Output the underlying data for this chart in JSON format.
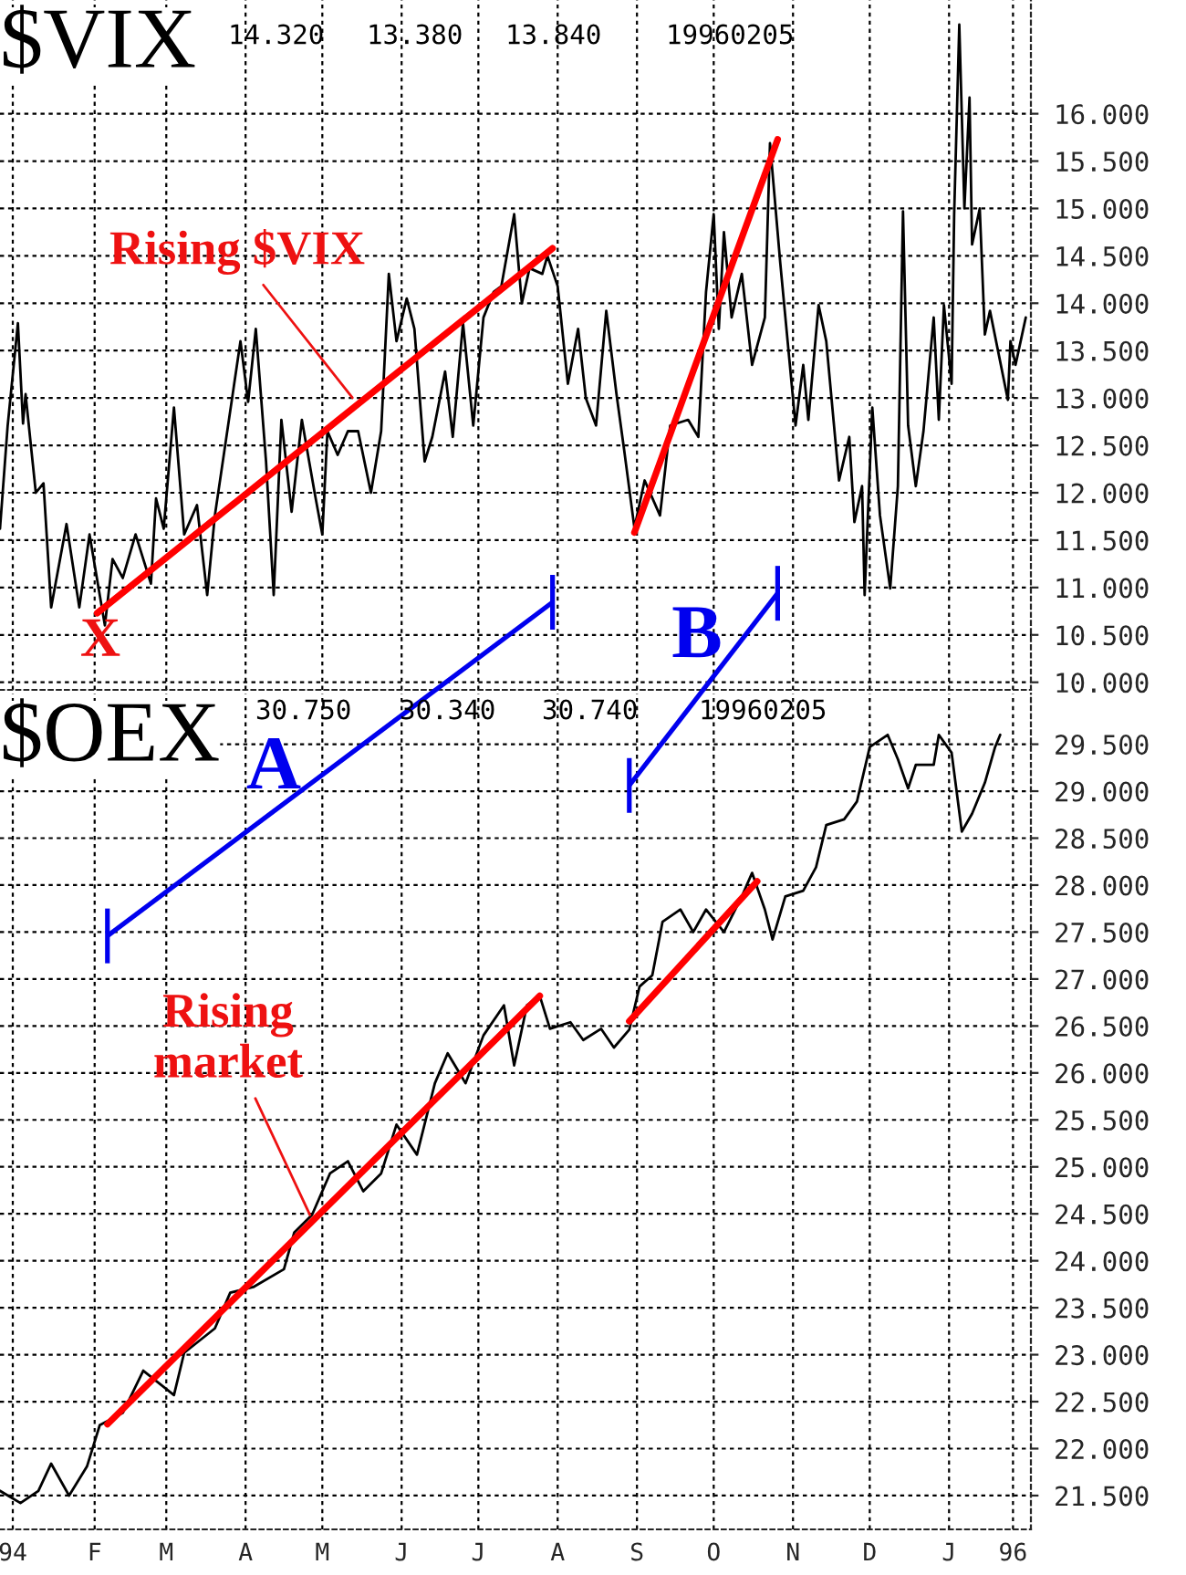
{
  "chart_data": [
    {
      "type": "line",
      "title": "$VIX",
      "grid": true,
      "line_style": "solid",
      "tick_labels": "y",
      "xlim": [
        "1994-12-26",
        "1996-02-02"
      ],
      "xticks": [
        {
          "value": "1994-12-31",
          "label": null
        },
        {
          "value": "1995-02-01",
          "label": null
        },
        {
          "value": "1995-03-01",
          "label": null
        },
        {
          "value": "1995-04-01",
          "label": null
        },
        {
          "value": "1995-05-01",
          "label": null
        },
        {
          "value": "1995-06-01",
          "label": null
        },
        {
          "value": "1995-07-01",
          "label": null
        },
        {
          "value": "1995-08-01",
          "label": null
        },
        {
          "value": "1995-09-01",
          "label": null
        },
        {
          "value": "1995-10-01",
          "label": null
        },
        {
          "value": "1995-11-01",
          "label": null
        },
        {
          "value": "1995-12-01",
          "label": null
        },
        {
          "value": "1996-01-01",
          "label": null
        },
        {
          "value": "1996-01-26",
          "label": null
        }
      ],
      "ylim": [
        9.92,
        17.2
      ],
      "yticks": [
        {
          "value": 10,
          "label": "10.000"
        },
        {
          "value": 10.5,
          "label": "10.500"
        },
        {
          "value": 11,
          "label": "11.000"
        },
        {
          "value": 11.5,
          "label": "11.500"
        },
        {
          "value": 12,
          "label": "12.000"
        },
        {
          "value": 12.5,
          "label": "12.500"
        },
        {
          "value": 13,
          "label": "13.000"
        },
        {
          "value": 13.5,
          "label": "13.500"
        },
        {
          "value": 14,
          "label": "14.000"
        },
        {
          "value": 14.5,
          "label": "14.500"
        },
        {
          "value": 15,
          "label": "15.000"
        },
        {
          "value": 15.5,
          "label": "15.500"
        },
        {
          "value": 16,
          "label": "16.000"
        }
      ],
      "series": [
        {
          "color": "#000000",
          "x": [
            "1994-12-26",
            "1994-12-29",
            "1995-01-02",
            "1995-01-04",
            "1995-01-05",
            "1995-01-09",
            "1995-01-12",
            "1995-01-15",
            "1995-01-21",
            "1995-01-26",
            "1995-01-30",
            "1995-02-05",
            "1995-02-08",
            "1995-02-12",
            "1995-02-17",
            "1995-02-23",
            "1995-02-25",
            "1995-02-28",
            "1995-03-04",
            "1995-03-08",
            "1995-03-13",
            "1995-03-17",
            "1995-03-20",
            "1995-03-30",
            "1995-04-02",
            "1995-04-05",
            "1995-04-09",
            "1995-04-12",
            "1995-04-15",
            "1995-04-19",
            "1995-04-23",
            "1995-04-28",
            "1995-05-01",
            "1995-05-03",
            "1995-05-07",
            "1995-05-11",
            "1995-05-15",
            "1995-05-20",
            "1995-05-24",
            "1995-05-27",
            "1995-05-30",
            "1995-06-03",
            "1995-06-06",
            "1995-06-10",
            "1995-06-13",
            "1995-06-18",
            "1995-06-21",
            "1995-06-25",
            "1995-06-29",
            "1995-07-03",
            "1995-07-07",
            "1995-07-10",
            "1995-07-15",
            "1995-07-18",
            "1995-07-21",
            "1995-07-26",
            "1995-07-28",
            "1995-08-01",
            "1995-08-05",
            "1995-08-09",
            "1995-08-12",
            "1995-08-16",
            "1995-08-20",
            "1995-08-24",
            "1995-08-27",
            "1995-08-31",
            "1995-09-04",
            "1995-09-10",
            "1995-09-14",
            "1995-09-21",
            "1995-09-25",
            "1995-09-28",
            "1995-10-01",
            "1995-10-03",
            "1995-10-05",
            "1995-10-08",
            "1995-10-12",
            "1995-10-16",
            "1995-10-21",
            "1995-10-23",
            "1995-10-27",
            "1995-11-02",
            "1995-11-05",
            "1995-11-07",
            "1995-11-11",
            "1995-11-14",
            "1995-11-19",
            "1995-11-23",
            "1995-11-25",
            "1995-11-28",
            "1995-11-29",
            "1995-12-02",
            "1995-12-05",
            "1995-12-09",
            "1995-12-12",
            "1995-12-14",
            "1995-12-16",
            "1995-12-19",
            "1995-12-22",
            "1995-12-26",
            "1995-12-28",
            "1995-12-30",
            "1996-01-02",
            "1996-01-03",
            "1996-01-05",
            "1996-01-07",
            "1996-01-09",
            "1996-01-10",
            "1996-01-13",
            "1996-01-15",
            "1996-01-17",
            "1996-01-24",
            "1996-01-25",
            "1996-01-27",
            "1996-01-31"
          ],
          "values": [
            11.62,
            12.71,
            13.79,
            12.73,
            13.04,
            12.0,
            12.1,
            10.79,
            11.67,
            10.79,
            11.56,
            10.6,
            11.3,
            11.1,
            11.56,
            11.04,
            11.94,
            11.62,
            12.9,
            11.56,
            11.87,
            10.92,
            11.76,
            13.6,
            12.96,
            13.73,
            12.33,
            10.92,
            12.77,
            11.8,
            12.77,
            12.0,
            11.56,
            12.65,
            12.4,
            12.65,
            12.65,
            12.0,
            12.65,
            14.31,
            13.6,
            14.05,
            13.73,
            12.33,
            12.59,
            13.28,
            12.59,
            13.79,
            12.71,
            13.85,
            14.12,
            14.18,
            14.94,
            14.0,
            14.37,
            14.31,
            14.5,
            14.18,
            13.15,
            13.73,
            13.0,
            12.71,
            13.92,
            13.04,
            12.45,
            11.63,
            12.13,
            11.76,
            12.71,
            12.77,
            12.59,
            14.12,
            14.94,
            13.73,
            14.75,
            13.85,
            14.31,
            13.35,
            13.85,
            15.69,
            14.43,
            12.71,
            13.35,
            12.77,
            13.98,
            13.6,
            12.13,
            12.59,
            11.69,
            12.07,
            10.92,
            12.9,
            11.76,
            10.99,
            12.07,
            14.97,
            12.71,
            12.07,
            12.65,
            13.85,
            12.77,
            13.98,
            13.15,
            14.94,
            16.94,
            15.0,
            16.17,
            14.62,
            15.0,
            13.67,
            13.92,
            12.98,
            13.6,
            13.35,
            13.85
          ]
        },
        {
          "type": "line",
          "color": "#ff0000",
          "x": [
            "1995-02-02",
            "1995-07-30"
          ],
          "values": [
            10.73,
            14.58
          ]
        },
        {
          "type": "line",
          "color": "#ff0000",
          "x": [
            "1995-08-31",
            "1995-10-26"
          ],
          "values": [
            11.58,
            15.73
          ]
        }
      ],
      "annotations": [
        "14.320",
        "13.380",
        "13.840",
        "19960205",
        {
          "text": "Rising $VIX",
          "x": "1995-05-14",
          "y": 12.96
        },
        "X",
        "B"
      ]
    },
    {
      "type": "line",
      "title": "$OEX",
      "grid": true,
      "line_style": "solid",
      "xlim": [
        "1994-12-26",
        "1996-02-02"
      ],
      "xticks": [
        {
          "value": "1994-12-31",
          "label": "94"
        },
        {
          "value": "1995-02-01",
          "label": "F"
        },
        {
          "value": "1995-03-01",
          "label": "M"
        },
        {
          "value": "1995-04-01",
          "label": "A"
        },
        {
          "value": "1995-05-01",
          "label": "M"
        },
        {
          "value": "1995-06-01",
          "label": "J"
        },
        {
          "value": "1995-07-01",
          "label": "J"
        },
        {
          "value": "1995-08-01",
          "label": "A"
        },
        {
          "value": "1995-09-01",
          "label": "S"
        },
        {
          "value": "1995-10-01",
          "label": "O"
        },
        {
          "value": "1995-11-01",
          "label": "N"
        },
        {
          "value": "1995-12-01",
          "label": "D"
        },
        {
          "value": "1996-01-01",
          "label": "J"
        },
        {
          "value": "1996-01-26",
          "label": "96"
        }
      ],
      "ylim": [
        21.14,
        30.04
      ],
      "yticks": [
        {
          "value": 21.5,
          "label": "21.500"
        },
        {
          "value": 22,
          "label": "22.000"
        },
        {
          "value": 22.5,
          "label": "22.500"
        },
        {
          "value": 23,
          "label": "23.000"
        },
        {
          "value": 23.5,
          "label": "23.500"
        },
        {
          "value": 24,
          "label": "24.000"
        },
        {
          "value": 24.5,
          "label": "24.500"
        },
        {
          "value": 25,
          "label": "25.000"
        },
        {
          "value": 25.5,
          "label": "25.500"
        },
        {
          "value": 26,
          "label": "26.000"
        },
        {
          "value": 26.5,
          "label": "26.500"
        },
        {
          "value": 27,
          "label": "27.000"
        },
        {
          "value": 27.5,
          "label": "27.500"
        },
        {
          "value": 28,
          "label": "28.000"
        },
        {
          "value": 28.5,
          "label": "28.500"
        },
        {
          "value": 29,
          "label": "29.000"
        },
        {
          "value": 29.5,
          "label": "29.500"
        }
      ],
      "series": [
        {
          "color": "#000000",
          "x": [
            "1994-12-26",
            "1995-01-03",
            "1995-01-10",
            "1995-01-15",
            "1995-01-22",
            "1995-01-29",
            "1995-02-03",
            "1995-02-12",
            "1995-02-20",
            "1995-03-04",
            "1995-03-08",
            "1995-03-20",
            "1995-03-26",
            "1995-04-04",
            "1995-04-16",
            "1995-04-20",
            "1995-04-27",
            "1995-05-04",
            "1995-05-11",
            "1995-05-17",
            "1995-05-24",
            "1995-05-30",
            "1995-06-07",
            "1995-06-14",
            "1995-06-19",
            "1995-06-26",
            "1995-07-03",
            "1995-07-11",
            "1995-07-15",
            "1995-07-20",
            "1995-07-25",
            "1995-07-29",
            "1995-08-06",
            "1995-08-11",
            "1995-08-18",
            "1995-08-23",
            "1995-08-29",
            "1995-09-02",
            "1995-09-07",
            "1995-09-11",
            "1995-09-18",
            "1995-09-23",
            "1995-09-28",
            "1995-10-05",
            "1995-10-12",
            "1995-10-16",
            "1995-10-21",
            "1995-10-24",
            "1995-10-29",
            "1995-11-05",
            "1995-11-10",
            "1995-11-14",
            "1995-11-21",
            "1995-11-26",
            "1995-12-01",
            "1995-12-08",
            "1995-12-12",
            "1995-12-16",
            "1995-12-19",
            "1995-12-26",
            "1995-12-28",
            "1996-01-02",
            "1996-01-06",
            "1996-01-10",
            "1996-01-15",
            "1996-01-19",
            "1996-01-21"
          ],
          "values": [
            21.55,
            21.42,
            21.55,
            21.84,
            21.5,
            21.81,
            22.25,
            22.38,
            22.83,
            22.57,
            23.02,
            23.28,
            23.66,
            23.72,
            23.91,
            24.3,
            24.49,
            24.93,
            25.06,
            24.74,
            24.93,
            25.45,
            25.13,
            25.89,
            26.21,
            25.89,
            26.4,
            26.72,
            26.08,
            26.72,
            26.82,
            26.47,
            26.54,
            26.35,
            26.47,
            26.27,
            26.46,
            26.92,
            27.04,
            27.61,
            27.74,
            27.5,
            27.74,
            27.5,
            27.88,
            28.13,
            27.74,
            27.42,
            27.88,
            27.94,
            28.19,
            28.64,
            28.7,
            28.89,
            29.47,
            29.6,
            29.34,
            29.03,
            29.28,
            29.28,
            29.6,
            29.41,
            28.57,
            28.76,
            29.09,
            29.47,
            29.6
          ]
        },
        {
          "type": "line",
          "color": "#ff0000",
          "x": [
            "1995-02-06",
            "1995-07-25"
          ],
          "values": [
            22.26,
            26.82
          ]
        },
        {
          "type": "line",
          "color": "#ff0000",
          "x": [
            "1995-08-29",
            "1995-10-18"
          ],
          "values": [
            26.55,
            28.04
          ]
        }
      ],
      "annotations": [
        "30.750",
        "30.340",
        "30.740",
        "19960205",
        {
          "text": "Rising\nmarket",
          "x": "1995-04-27",
          "y": 24.44
        },
        "A"
      ]
    }
  ]
}
